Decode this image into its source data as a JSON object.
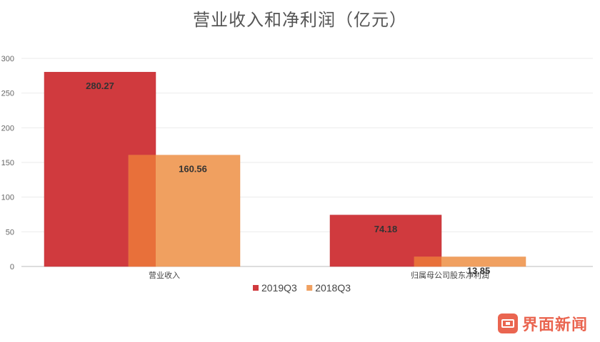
{
  "chart_data": {
    "type": "bar",
    "title": "营业收入和净利润（亿元）",
    "categories": [
      "营业收入",
      "归属母公司股东净利润"
    ],
    "series": [
      {
        "name": "2019Q3",
        "values": [
          280.27,
          74.18
        ],
        "color": "#d03a3e"
      },
      {
        "name": "2018Q3",
        "values": [
          160.56,
          13.85
        ],
        "color": "#f0a060"
      }
    ],
    "overlap_color": "#e8703a",
    "value_labels": [
      [
        "280.27",
        "74.18"
      ],
      [
        "160.56",
        "13.85"
      ]
    ],
    "ylim": [
      0,
      300
    ],
    "yticks": [
      "0",
      "50",
      "100",
      "150",
      "200",
      "250",
      "300"
    ],
    "xlabel": "",
    "ylabel": "",
    "grid": true,
    "legend_position": "bottom-center"
  },
  "watermark": {
    "text": "界面新闻",
    "icon": "jiemian-logo-icon",
    "color": "#e8553e"
  }
}
